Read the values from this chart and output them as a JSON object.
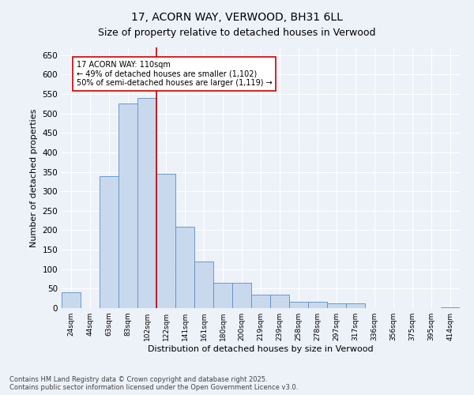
{
  "title": "17, ACORN WAY, VERWOOD, BH31 6LL",
  "subtitle": "Size of property relative to detached houses in Verwood",
  "xlabel": "Distribution of detached houses by size in Verwood",
  "ylabel": "Number of detached properties",
  "footnote": "Contains HM Land Registry data © Crown copyright and database right 2025.\nContains public sector information licensed under the Open Government Licence v3.0.",
  "categories": [
    "24sqm",
    "44sqm",
    "63sqm",
    "83sqm",
    "102sqm",
    "122sqm",
    "141sqm",
    "161sqm",
    "180sqm",
    "200sqm",
    "219sqm",
    "239sqm",
    "258sqm",
    "278sqm",
    "297sqm",
    "317sqm",
    "336sqm",
    "356sqm",
    "375sqm",
    "395sqm",
    "414sqm"
  ],
  "values": [
    40,
    0,
    340,
    525,
    540,
    345,
    210,
    120,
    65,
    65,
    35,
    35,
    17,
    17,
    12,
    12,
    0,
    0,
    0,
    0,
    2
  ],
  "bar_color": "#c8d9ee",
  "bar_edge_color": "#5b8ec4",
  "vline_x_index": 4.5,
  "vline_color": "#cc0000",
  "annotation_text": "17 ACORN WAY: 110sqm\n← 49% of detached houses are smaller (1,102)\n50% of semi-detached houses are larger (1,119) →",
  "annotation_box_color": "#ffffff",
  "annotation_box_edge": "#cc0000",
  "ylim": [
    0,
    670
  ],
  "yticks": [
    0,
    50,
    100,
    150,
    200,
    250,
    300,
    350,
    400,
    450,
    500,
    550,
    600,
    650
  ],
  "background_color": "#edf1f8",
  "grid_color": "#ffffff",
  "title_fontsize": 10,
  "subtitle_fontsize": 9,
  "figwidth": 6.0,
  "figheight": 5.0,
  "dpi": 100
}
